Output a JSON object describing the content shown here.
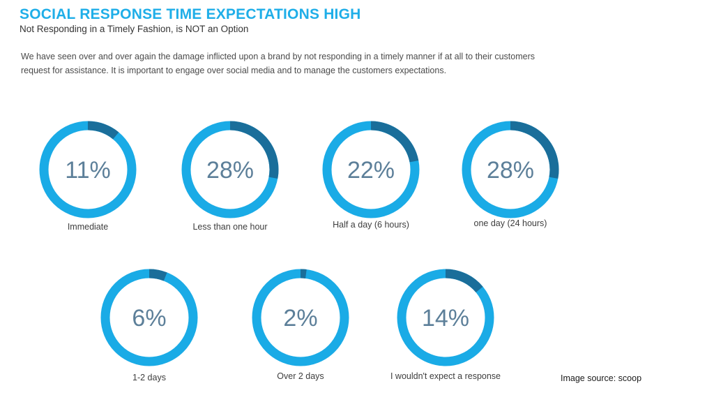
{
  "header": {
    "title": "SOCIAL RESPONSE TIME EXPECTATIONS HIGH",
    "subtitle": "Not Responding in a Timely Fashion, is NOT an Option"
  },
  "body": {
    "line1": "We have seen over and over again the damage inflicted upon a brand by not responding in a timely manner if at all to their customers",
    "line2": "request for assistance. It is important to engage over social media and to manage the customers expectations."
  },
  "colors": {
    "ring": "#1aabe6",
    "highlight": "#1a6e9a",
    "value_text": "#5c7f99",
    "label_text": "#3d3d3d",
    "title": "#1faee8"
  },
  "chart_data": {
    "type": "donut",
    "unit": "%",
    "items": [
      {
        "label": "Immediate",
        "value": 11,
        "display": "11%"
      },
      {
        "label": "Less than one hour",
        "value": 28,
        "display": "28%"
      },
      {
        "label": "Half a day (6 hours)",
        "value": 22,
        "display": "22%"
      },
      {
        "label": "one day (24 hours)",
        "value": 28,
        "display": "28%"
      },
      {
        "label": "1-2 days",
        "value": 6,
        "display": "6%"
      },
      {
        "label": "Over 2 days",
        "value": 2,
        "display": "2%"
      },
      {
        "label": "I wouldn't expect a response",
        "value": 14,
        "display": "14%"
      }
    ]
  },
  "footer": {
    "source": "Image source: scoop"
  }
}
